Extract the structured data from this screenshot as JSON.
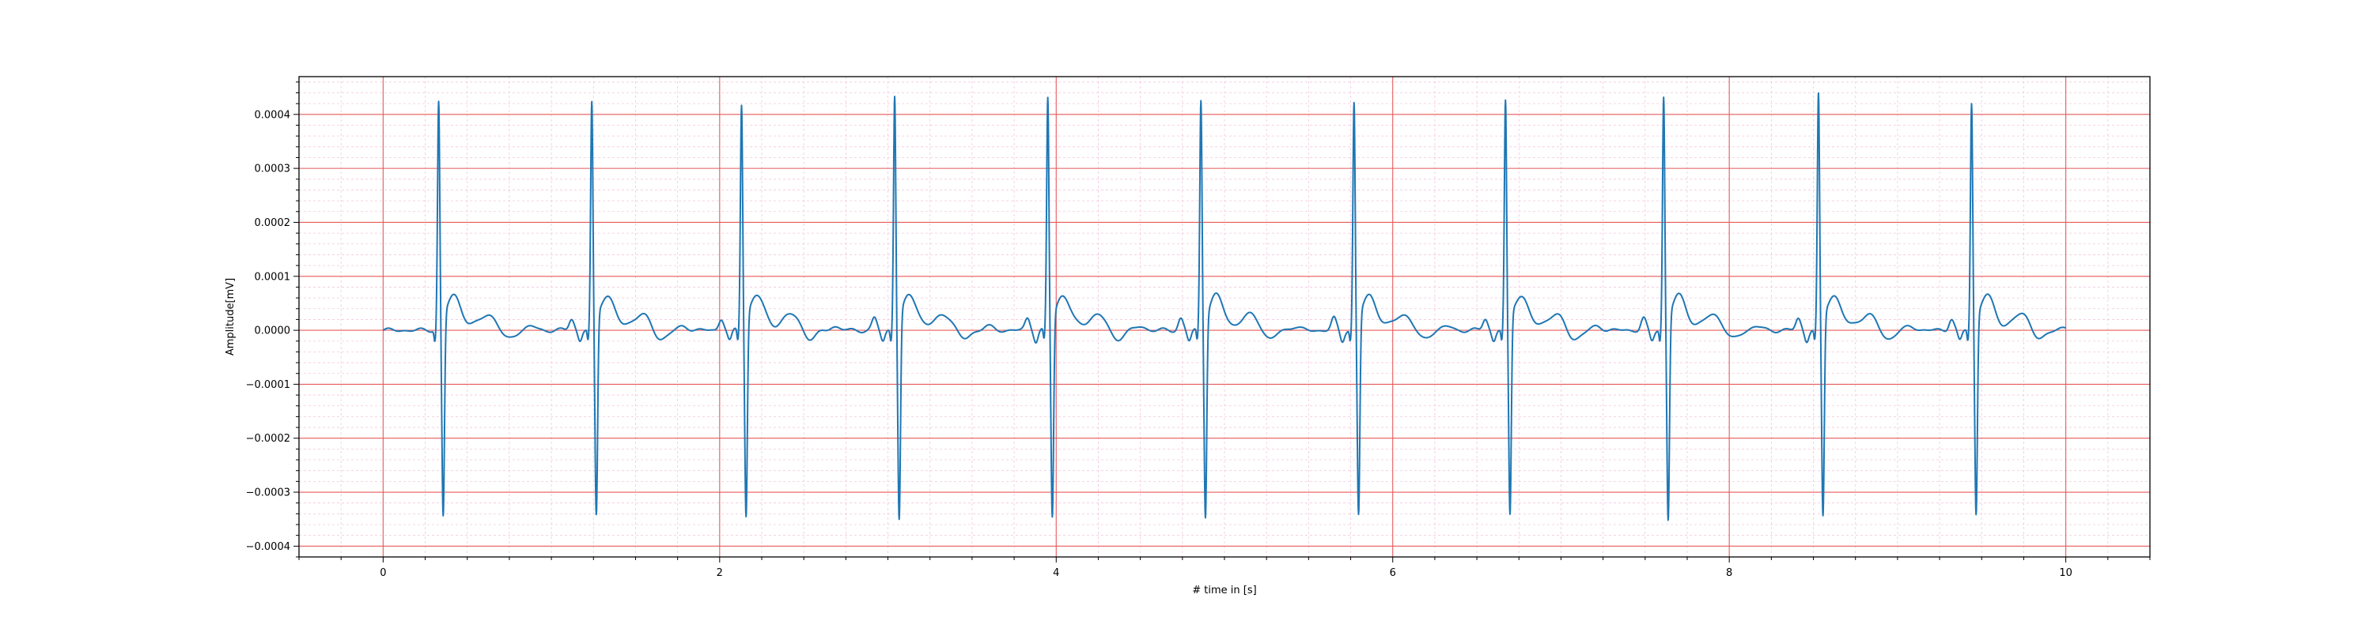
{
  "chart_data": {
    "type": "line",
    "title": "",
    "xlabel": "# time in [s]",
    "ylabel": "Amplitude[mV]",
    "xlim": [
      -0.5,
      10.5
    ],
    "ylim": [
      -0.00042,
      0.00047
    ],
    "x_ticks": [
      0,
      2,
      4,
      6,
      8,
      10
    ],
    "x_tick_labels": [
      "0",
      "2",
      "4",
      "6",
      "8",
      "10"
    ],
    "y_ticks": [
      -0.0004,
      -0.0003,
      -0.0002,
      -0.0001,
      0.0,
      0.0001,
      0.0002,
      0.0003,
      0.0004
    ],
    "y_tick_labels": [
      "−0.0004",
      "−0.0003",
      "−0.0002",
      "−0.0001",
      "0.0000",
      "0.0001",
      "0.0002",
      "0.0003",
      "0.0004"
    ],
    "grid": {
      "major": true,
      "minor": true,
      "major_color": "#e8595a",
      "minor_color": "#f4c6df"
    },
    "line_color": "#1f77b4",
    "x_start": 0.0,
    "x_end": 10.0,
    "beats": [
      {
        "r_time": 0.33,
        "r_peak": 0.000415,
        "s_trough": -0.00037
      },
      {
        "r_time": 1.24,
        "r_peak": 0.000412,
        "s_trough": -0.000368
      },
      {
        "r_time": 2.13,
        "r_peak": 0.000411,
        "s_trough": -0.000368
      },
      {
        "r_time": 3.04,
        "r_peak": 0.000428,
        "s_trough": -0.000375
      },
      {
        "r_time": 3.95,
        "r_peak": 0.000421,
        "s_trough": -0.00037
      },
      {
        "r_time": 4.86,
        "r_peak": 0.000418,
        "s_trough": -0.000368
      },
      {
        "r_time": 5.77,
        "r_peak": 0.000412,
        "s_trough": -0.000367
      },
      {
        "r_time": 6.67,
        "r_peak": 0.000415,
        "s_trough": -0.000368
      },
      {
        "r_time": 7.61,
        "r_peak": 0.000424,
        "s_trough": -0.000376
      },
      {
        "r_time": 8.53,
        "r_peak": 0.000427,
        "s_trough": -0.00037
      },
      {
        "r_time": 9.44,
        "r_peak": 0.000412,
        "s_trough": -0.000365
      }
    ]
  }
}
